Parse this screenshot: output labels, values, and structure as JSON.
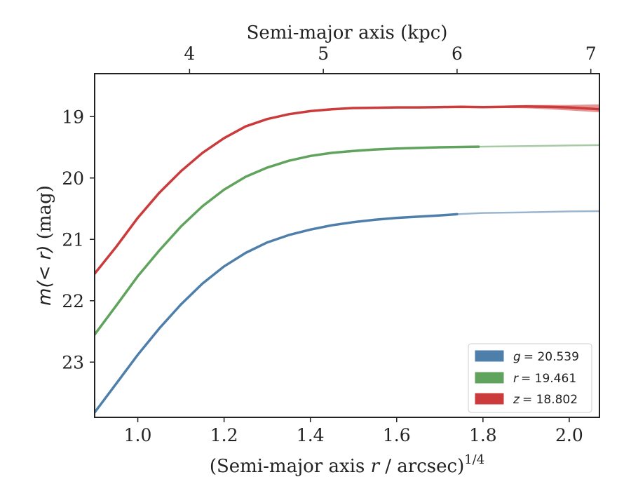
{
  "chart_data": {
    "type": "line",
    "top_xlabel": "Semi-major axis (kpc)",
    "top_ticks": [
      4,
      5,
      6,
      7
    ],
    "xlabel_prefix": "(Semi-major axis ",
    "xlabel_var": "r",
    "xlabel_suffix": " / arcsec)",
    "xlabel_sup": "1/4",
    "ylabel_math": "m(< r)",
    "ylabel_unit": " (mag)",
    "xlim": [
      0.9,
      2.07
    ],
    "ylim": [
      23.9,
      18.3
    ],
    "y_inverted": true,
    "x_ticks": [
      "1.0",
      "1.2",
      "1.4",
      "1.6",
      "1.8",
      "2.0"
    ],
    "y_ticks": [
      "19",
      "20",
      "21",
      "22",
      "23"
    ],
    "legend_position": "lower-right",
    "grid": false,
    "series": [
      {
        "name": "g = 20.539",
        "legend_var": "g",
        "legend_value": "= 20.539",
        "color": "#4e7fab",
        "light_color": "#9ab6cf",
        "x": [
          0.9,
          0.95,
          1.0,
          1.05,
          1.1,
          1.15,
          1.2,
          1.25,
          1.3,
          1.35,
          1.4,
          1.45,
          1.5,
          1.55,
          1.6,
          1.65,
          1.7,
          1.74
        ],
        "y": [
          23.82,
          23.35,
          22.88,
          22.45,
          22.06,
          21.72,
          21.44,
          21.22,
          21.05,
          20.93,
          20.84,
          20.77,
          20.72,
          20.68,
          20.65,
          20.63,
          20.61,
          20.59
        ],
        "x_ext": [
          1.74,
          1.8,
          1.9,
          2.0,
          2.07
        ],
        "y_ext": [
          20.59,
          20.57,
          20.56,
          20.545,
          20.54
        ]
      },
      {
        "name": "r = 19.461",
        "legend_var": "r",
        "legend_value": "= 19.461",
        "color": "#5fa35c",
        "light_color": "#a6cba4",
        "x": [
          0.9,
          0.95,
          1.0,
          1.05,
          1.1,
          1.15,
          1.2,
          1.25,
          1.3,
          1.35,
          1.4,
          1.45,
          1.5,
          1.55,
          1.6,
          1.65,
          1.7,
          1.79
        ],
        "y": [
          22.55,
          22.08,
          21.6,
          21.18,
          20.79,
          20.46,
          20.19,
          19.98,
          19.83,
          19.72,
          19.64,
          19.59,
          19.56,
          19.535,
          19.52,
          19.51,
          19.5,
          19.49
        ],
        "x_ext": [
          1.79,
          1.9,
          2.0,
          2.07
        ],
        "y_ext": [
          19.49,
          19.48,
          19.47,
          19.465
        ]
      },
      {
        "name": "z = 18.802",
        "legend_var": "z",
        "legend_value": "= 18.802",
        "color": "#cc3b3b",
        "light_color": "#e07b7b",
        "x": [
          0.9,
          0.95,
          1.0,
          1.05,
          1.1,
          1.15,
          1.2,
          1.25,
          1.3,
          1.35,
          1.4,
          1.45,
          1.5,
          1.55,
          1.6,
          1.65,
          1.7,
          1.75,
          1.8,
          1.85,
          1.9,
          1.95,
          2.0,
          2.07
        ],
        "y": [
          21.56,
          21.12,
          20.65,
          20.24,
          19.89,
          19.59,
          19.35,
          19.16,
          19.04,
          18.96,
          18.91,
          18.88,
          18.86,
          18.855,
          18.85,
          18.85,
          18.845,
          18.84,
          18.845,
          18.84,
          18.835,
          18.84,
          18.85,
          18.88
        ],
        "band_x": [
          1.85,
          1.9,
          1.95,
          2.0,
          2.07
        ],
        "band_lo": [
          18.82,
          18.81,
          18.81,
          18.81,
          18.8
        ],
        "band_hi": [
          18.86,
          18.865,
          18.88,
          18.9,
          18.93
        ]
      }
    ]
  }
}
